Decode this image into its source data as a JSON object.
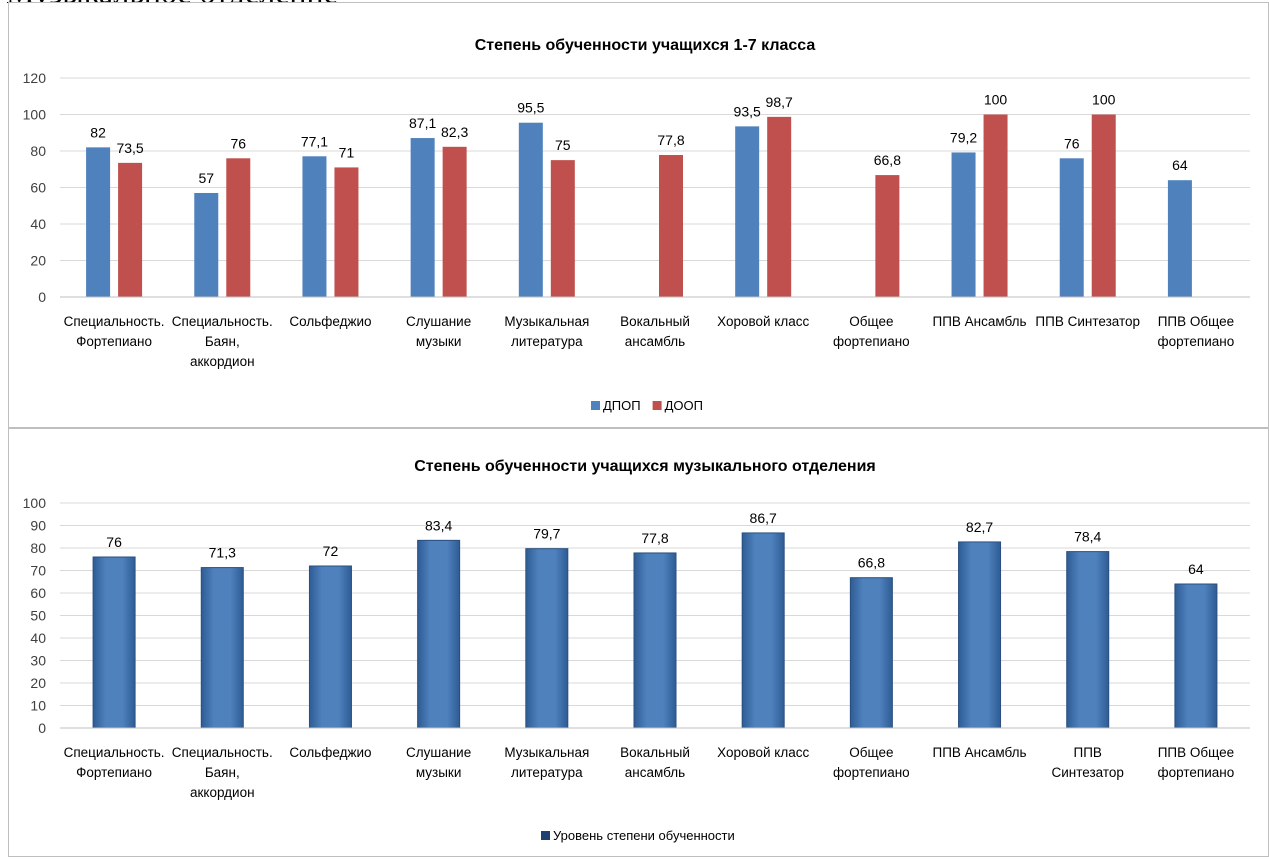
{
  "page": {
    "heading": "Музыкальное отделение"
  },
  "chart_data": [
    {
      "type": "bar",
      "title": "Степень обученности учащихся 1-7 класса",
      "categories": [
        [
          "Специальность.",
          "Фортепиано"
        ],
        [
          "Специальность.",
          "Баян,",
          "аккордион"
        ],
        [
          "Сольфеджио"
        ],
        [
          "Слушание",
          "музыки"
        ],
        [
          "Музыкальная",
          "литература"
        ],
        [
          "Вокальный",
          "ансамбль"
        ],
        [
          "Хоровой класс"
        ],
        [
          "Общее",
          "фортепиано"
        ],
        [
          "ППВ Ансамбль"
        ],
        [
          "ППВ Синтезатор"
        ],
        [
          "ППВ Общее",
          "фортепиано"
        ]
      ],
      "series": [
        {
          "name": "ДПОП",
          "color": "#4f81bd",
          "values": [
            82,
            57,
            77.1,
            87.1,
            95.5,
            null,
            93.5,
            null,
            79.2,
            76,
            64
          ]
        },
        {
          "name": "ДООП",
          "color": "#c0504d",
          "values": [
            73.5,
            76,
            71,
            82.3,
            75,
            77.8,
            98.7,
            66.8,
            100,
            100,
            null
          ]
        }
      ],
      "data_labels": [
        [
          "82",
          "57",
          "77,1",
          "87,1",
          "95,5",
          null,
          "93,5",
          null,
          "79,2",
          "76",
          "64"
        ],
        [
          "73,5",
          "76",
          "71",
          "82,3",
          "75",
          "77,8",
          "98,7",
          "66,8",
          "100",
          "100",
          null
        ]
      ],
      "ylim": [
        0,
        120
      ],
      "yticks": [
        0,
        20,
        40,
        60,
        80,
        100,
        120
      ],
      "grid": true,
      "legend": "bottom"
    },
    {
      "type": "bar",
      "title": "Степень обученности учащихся музыкального отделения",
      "categories": [
        [
          "Специальность.",
          "Фортепиано"
        ],
        [
          "Специальность.",
          "Баян,",
          "аккордион"
        ],
        [
          "Сольфеджио"
        ],
        [
          "Слушание",
          "музыки"
        ],
        [
          "Музыкальная",
          "литература"
        ],
        [
          "Вокальный",
          "ансамбль"
        ],
        [
          "Хоровой класс"
        ],
        [
          "Общее",
          "фортепиано"
        ],
        [
          "ППВ Ансамбль"
        ],
        [
          "ППВ",
          "Синтезатор"
        ],
        [
          "ППВ Общее",
          "фортепиано"
        ]
      ],
      "series": [
        {
          "name": "Уровень степени обученности",
          "color": "#4f81bd",
          "values": [
            76,
            71.3,
            72,
            83.4,
            79.7,
            77.8,
            86.7,
            66.8,
            82.7,
            78.4,
            64
          ]
        }
      ],
      "data_labels": [
        [
          "76",
          "71,3",
          "72",
          "83,4",
          "79,7",
          "77,8",
          "86,7",
          "66,8",
          "82,7",
          "78,4",
          "64"
        ]
      ],
      "ylim": [
        0,
        100
      ],
      "yticks": [
        0,
        10,
        20,
        30,
        40,
        50,
        60,
        70,
        80,
        90,
        100
      ],
      "grid": true,
      "legend": "bottom"
    }
  ]
}
